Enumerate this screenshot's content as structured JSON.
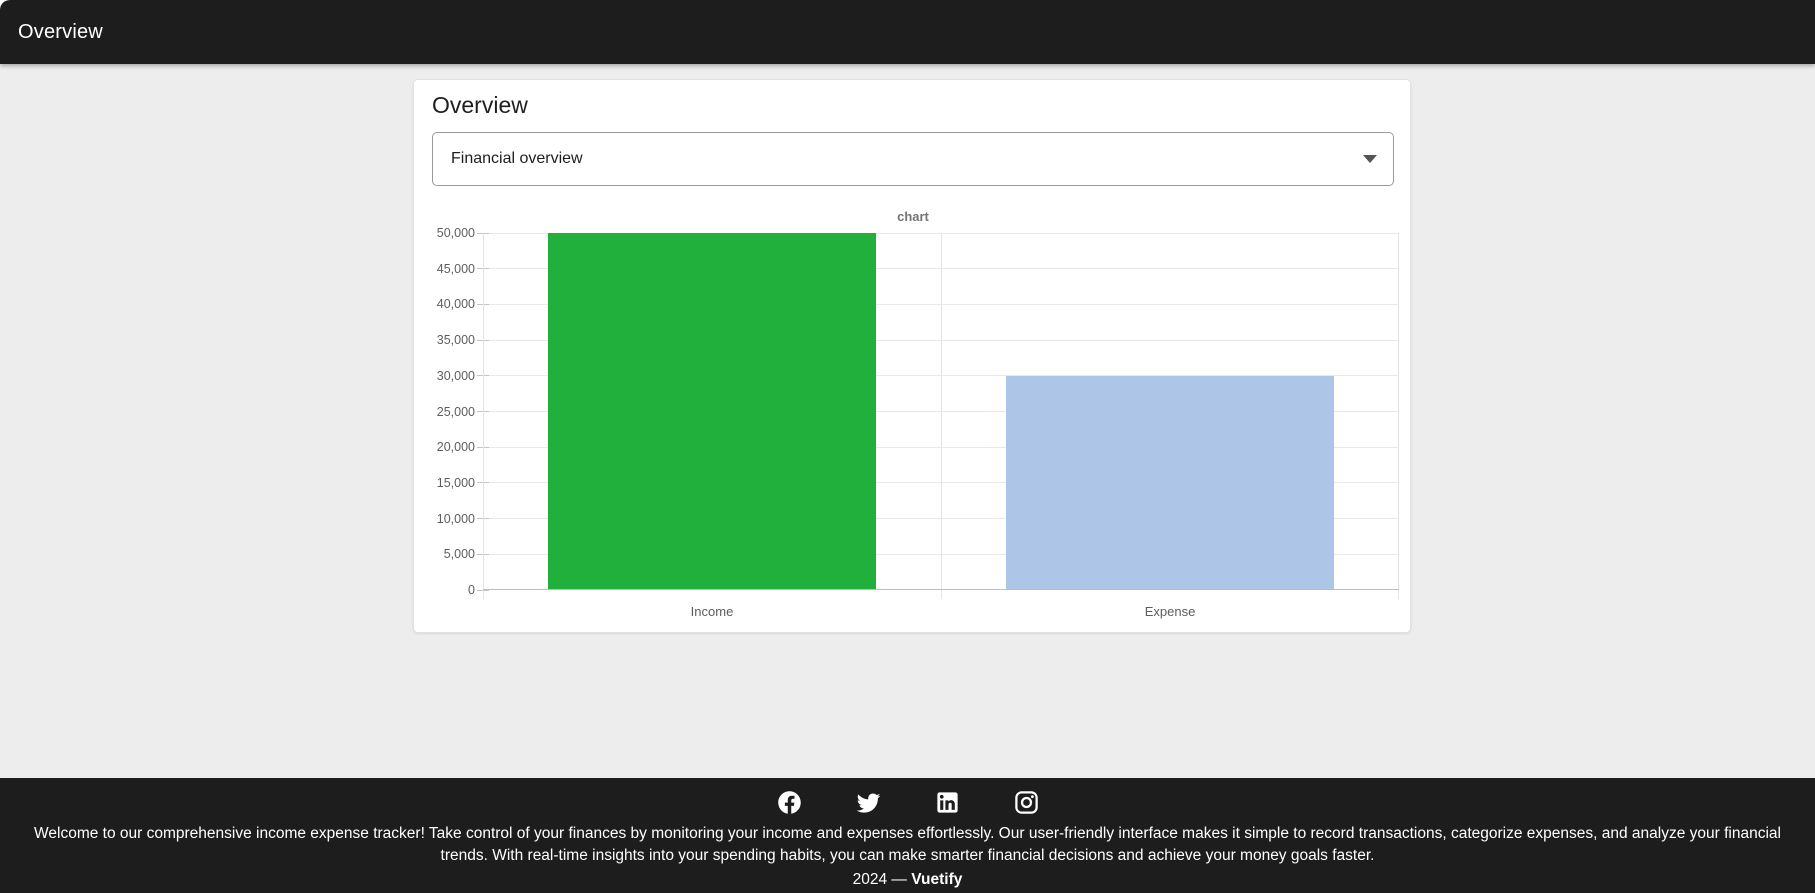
{
  "app_bar": {
    "title": "Overview"
  },
  "card": {
    "title": "Overview",
    "select": {
      "value": "Financial overview"
    }
  },
  "chart_data": {
    "type": "bar",
    "title": "chart",
    "categories": [
      "Income",
      "Expense"
    ],
    "values": [
      50000,
      30000
    ],
    "series_colors": [
      "#21b03c",
      "#adc5e7"
    ],
    "xlabel": "",
    "ylabel": "",
    "ylim": [
      0,
      50000
    ],
    "ytick_step": 5000,
    "ytick_labels": [
      "0",
      "5,000",
      "10,000",
      "15,000",
      "20,000",
      "25,000",
      "30,000",
      "35,000",
      "40,000",
      "45,000",
      "50,000"
    ],
    "grid": true,
    "legend": "none"
  },
  "footer": {
    "icons": [
      "facebook",
      "twitter",
      "linkedin",
      "instagram"
    ],
    "description": "Welcome to our comprehensive income expense tracker! Take control of your finances by monitoring your income and expenses effortlessly. Our user-friendly interface makes it simple to record transactions, categorize expenses, and analyze your financial trends. With real-time insights into your spending habits, you can make smarter financial decisions and achieve your money goals faster.",
    "copyright_prefix": "2024 — ",
    "brand": "Vuetify"
  },
  "colors": {
    "app_bar_bg": "#1d1d1d",
    "footer_bg": "#1d1d1d",
    "page_bg": "#ededed",
    "income_bar": "#21b03c",
    "expense_bar": "#adc5e7"
  }
}
